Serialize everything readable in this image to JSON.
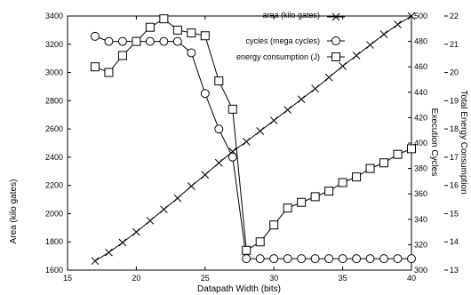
{
  "chart_data": {
    "type": "line",
    "xlabel": "Datapath Width (bits)",
    "ylabel_left": "Area (kilo gates)",
    "ylabel_mid": "Execution Cycles",
    "ylabel_right": "Total Energy Consumption",
    "xlim": [
      15,
      40
    ],
    "ylim_left": [
      1600,
      3400
    ],
    "ylim_mid": [
      300,
      500
    ],
    "ylim_right": [
      13,
      22
    ],
    "x_ticks": [
      15,
      20,
      25,
      30,
      35,
      40
    ],
    "y_ticks_left": [
      1600,
      1800,
      2000,
      2200,
      2400,
      2600,
      2800,
      3000,
      3200,
      3400
    ],
    "y_ticks_mid": [
      300,
      320,
      340,
      360,
      380,
      400,
      420,
      440,
      460,
      480,
      500
    ],
    "y_ticks_right": [
      13,
      14,
      15,
      16,
      17,
      18,
      19,
      20,
      21,
      22
    ],
    "legend_position": "top-right",
    "grid": false,
    "series": [
      {
        "name": "area (kilo gates)",
        "marker": "x",
        "axis": "left",
        "x": [
          17,
          18,
          19,
          20,
          21,
          22,
          23,
          24,
          25,
          26,
          27,
          28,
          29,
          30,
          31,
          32,
          33,
          34,
          35,
          36,
          37,
          38,
          39,
          40
        ],
        "values": [
          1665,
          1725,
          1795,
          1870,
          1950,
          2030,
          2110,
          2195,
          2275,
          2360,
          2440,
          2510,
          2585,
          2660,
          2735,
          2810,
          2885,
          2965,
          3045,
          3120,
          3195,
          3270,
          3340,
          3400
        ]
      },
      {
        "name": "cycles (mega cycles)",
        "marker": "circle",
        "axis": "mid",
        "x": [
          17,
          18,
          19,
          20,
          21,
          22,
          23,
          24,
          25,
          26,
          27,
          28,
          29,
          30,
          31,
          32,
          33,
          34,
          35,
          36,
          37,
          38,
          39,
          40
        ],
        "values": [
          484,
          480,
          480,
          480,
          480,
          480,
          480,
          471,
          439,
          411,
          389,
          309,
          309,
          309,
          309,
          309,
          309,
          309,
          309,
          309,
          309,
          309,
          309,
          309
        ]
      },
      {
        "name": "energy consumption (J)",
        "marker": "square",
        "axis": "right",
        "x": [
          17,
          18,
          19,
          20,
          21,
          22,
          23,
          24,
          25,
          26,
          27,
          28,
          29,
          30,
          31,
          32,
          33,
          34,
          35,
          36,
          37,
          38,
          39,
          40
        ],
        "values": [
          20.2,
          20.0,
          20.6,
          21.1,
          21.6,
          21.9,
          21.5,
          21.4,
          21.3,
          19.7,
          18.7,
          13.7,
          14.0,
          14.6,
          15.2,
          15.4,
          15.6,
          15.8,
          16.1,
          16.3,
          16.6,
          16.8,
          17.1,
          17.3
        ]
      }
    ]
  }
}
